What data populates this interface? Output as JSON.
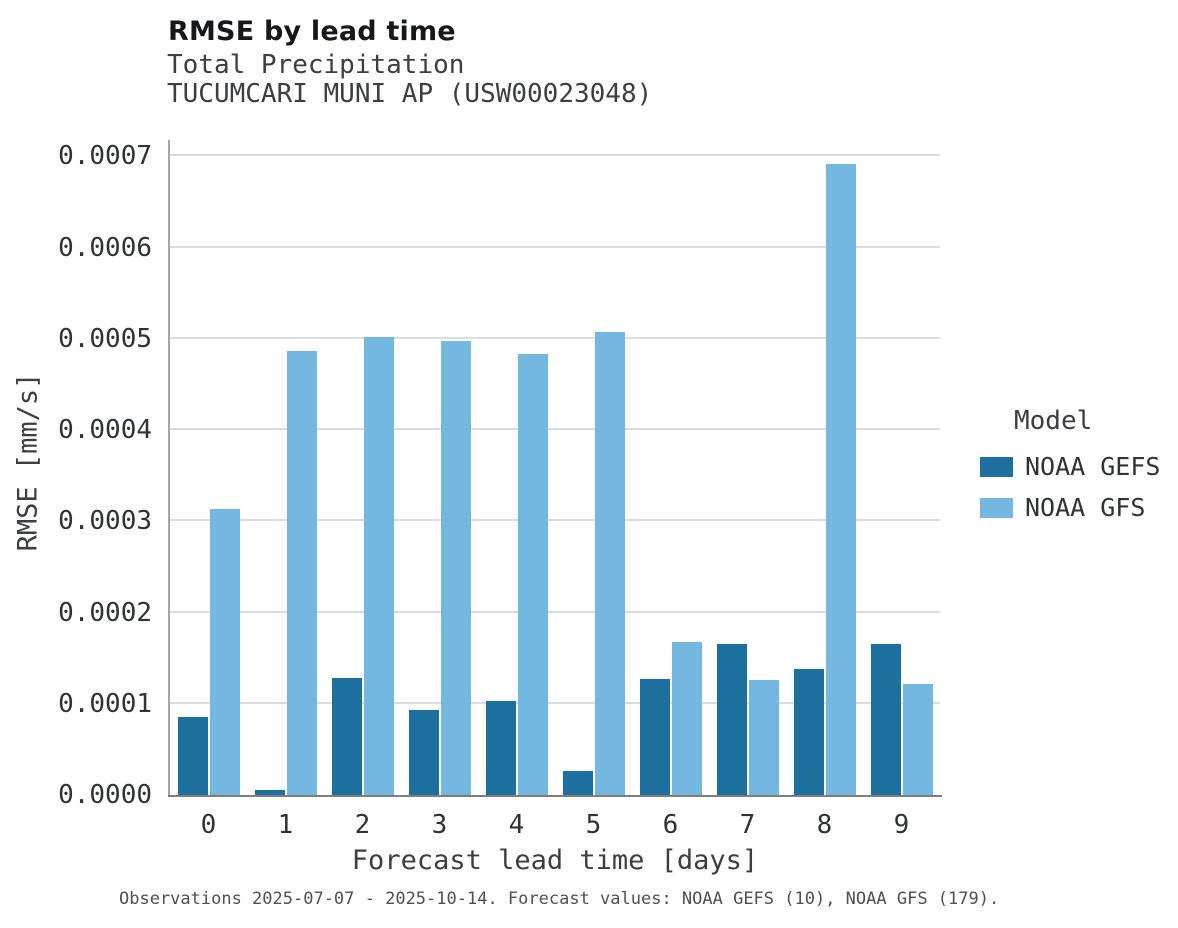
{
  "figure": {
    "title": "RMSE by lead time",
    "subtitle_variable": "Total Precipitation",
    "subtitle_station": "TUCUMCARI MUNI AP (USW00023048)",
    "caption": "Observations 2025-07-07 - 2025-10-14. Forecast values: NOAA GEFS (10), NOAA GFS (179)."
  },
  "legend": {
    "title": "Model"
  },
  "chart_data": {
    "type": "bar",
    "title": "RMSE by lead time",
    "xlabel": "Forecast lead time [days]",
    "ylabel": "RMSE [mm/s]",
    "categories": [
      "0",
      "1",
      "2",
      "3",
      "4",
      "5",
      "6",
      "7",
      "8",
      "9"
    ],
    "series": [
      {
        "name": "NOAA GEFS",
        "color": "#1d6f9e",
        "values": [
          8.5e-05,
          5e-06,
          0.000128,
          9.3e-05,
          0.000103,
          2.6e-05,
          0.000127,
          0.000166,
          0.000138,
          0.000165
        ]
      },
      {
        "name": "NOAA GFS",
        "color": "#74b8e0",
        "values": [
          0.000313,
          0.000487,
          0.000502,
          0.000498,
          0.000483,
          0.000508,
          0.000168,
          0.000126,
          0.000692,
          0.000122
        ]
      }
    ],
    "ylim": [
      0,
      0.0007
    ],
    "yticks": [
      0,
      0.0001,
      0.0002,
      0.0003,
      0.0004,
      0.0005,
      0.0006,
      0.0007
    ],
    "ytick_labels": [
      "0.0000",
      "0.0001",
      "0.0002",
      "0.0003",
      "0.0004",
      "0.0005",
      "0.0006",
      "0.0007"
    ],
    "grid": true,
    "legend_position": "right"
  }
}
